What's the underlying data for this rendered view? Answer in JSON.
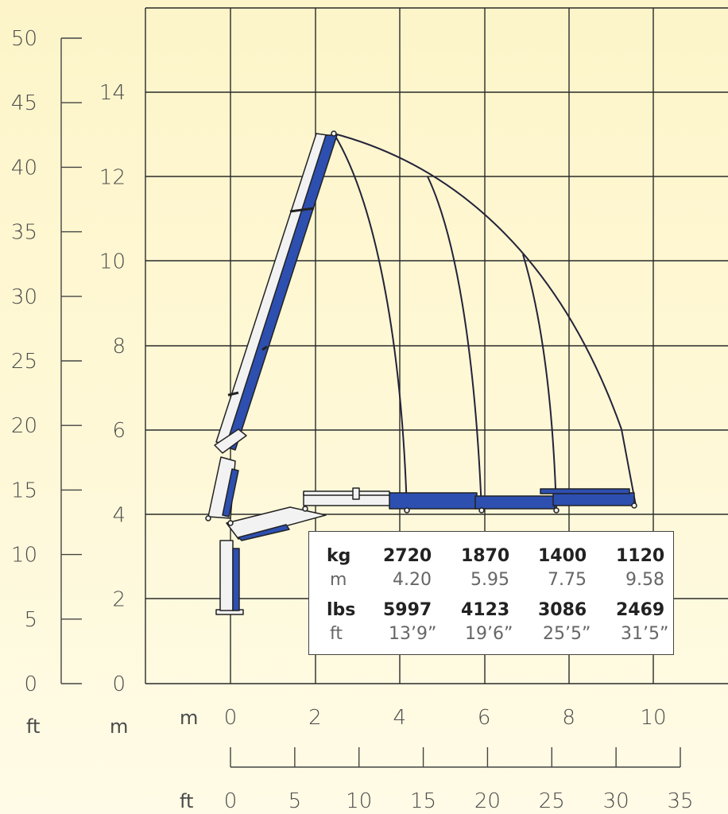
{
  "colors": {
    "background": "#fdf6cf",
    "grid": "#2a2a2a",
    "boom_blue": "#2d4fb0",
    "boom_white": "#f2f2f2",
    "outline": "#222222"
  },
  "axes": {
    "left_ft_ticks": [
      "50",
      "45",
      "40",
      "35",
      "30",
      "25",
      "20",
      "15",
      "10",
      "5",
      "0"
    ],
    "left_m_ticks": [
      "14",
      "12",
      "10",
      "8",
      "6",
      "4",
      "2",
      "0"
    ],
    "left_ft_unit": "ft",
    "left_m_unit": "m",
    "bottom_m_unit": "m",
    "bottom_m_ticks": [
      "0",
      "2",
      "4",
      "6",
      "8",
      "10"
    ],
    "bottom_ft_unit": "ft",
    "bottom_ft_ticks": [
      "0",
      "5",
      "10",
      "15",
      "20",
      "25",
      "30",
      "35"
    ]
  },
  "load_table": {
    "row_kg_label": "kg",
    "kg": [
      "2720",
      "1870",
      "1400",
      "1120"
    ],
    "row_m_label": "m",
    "m": [
      "4.20",
      "5.95",
      "7.75",
      "9.58"
    ],
    "row_lbs_label": "lbs",
    "lbs": [
      "5997",
      "4123",
      "3086",
      "2469"
    ],
    "row_ft_label": "ft",
    "ft": [
      "13’9”",
      "19’6”",
      "25’5”",
      "31’5”"
    ]
  },
  "chart_data": {
    "type": "table",
    "columns": [
      "kg",
      "m",
      "lbs",
      "ft"
    ],
    "rows": [
      {
        "kg": 2720,
        "m": 4.2,
        "lbs": 5997,
        "ft": "13’9”"
      },
      {
        "kg": 1870,
        "m": 5.95,
        "lbs": 4123,
        "ft": "19’6”"
      },
      {
        "kg": 1400,
        "m": 7.75,
        "lbs": 3086,
        "ft": "25’5”"
      },
      {
        "kg": 1120,
        "m": 9.58,
        "lbs": 2469,
        "ft": "31’5”"
      }
    ],
    "xlim_m": [
      0,
      11
    ],
    "ylim_m": [
      0,
      14
    ],
    "grid": true
  }
}
